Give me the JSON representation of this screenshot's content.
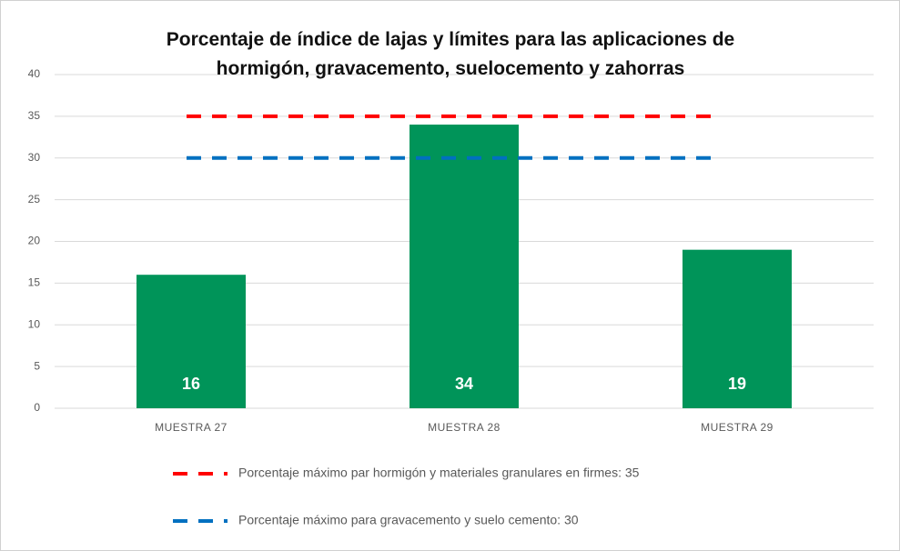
{
  "chart_data": {
    "type": "bar",
    "title": "Porcentaje de índice de lajas y límites para las aplicaciones de hormigón, gravacemento, suelocemento y zahorras",
    "categories": [
      "MUESTRA 27",
      "MUESTRA 28",
      "MUESTRA 29"
    ],
    "values": [
      16,
      34,
      19
    ],
    "color": "#009459",
    "ylim": [
      0,
      40
    ],
    "yticks": [
      0,
      5,
      10,
      15,
      20,
      25,
      30,
      35,
      40
    ],
    "grid": true,
    "reference_lines": [
      {
        "name": "Porcentaje máximo par hormigón y materiales granulares en firmes: 35",
        "value": 35,
        "color": "#ff0000"
      },
      {
        "name": "Porcentaje máximo para gravacemento y suelo cemento: 30",
        "value": 30,
        "color": "#0070c0"
      }
    ]
  }
}
